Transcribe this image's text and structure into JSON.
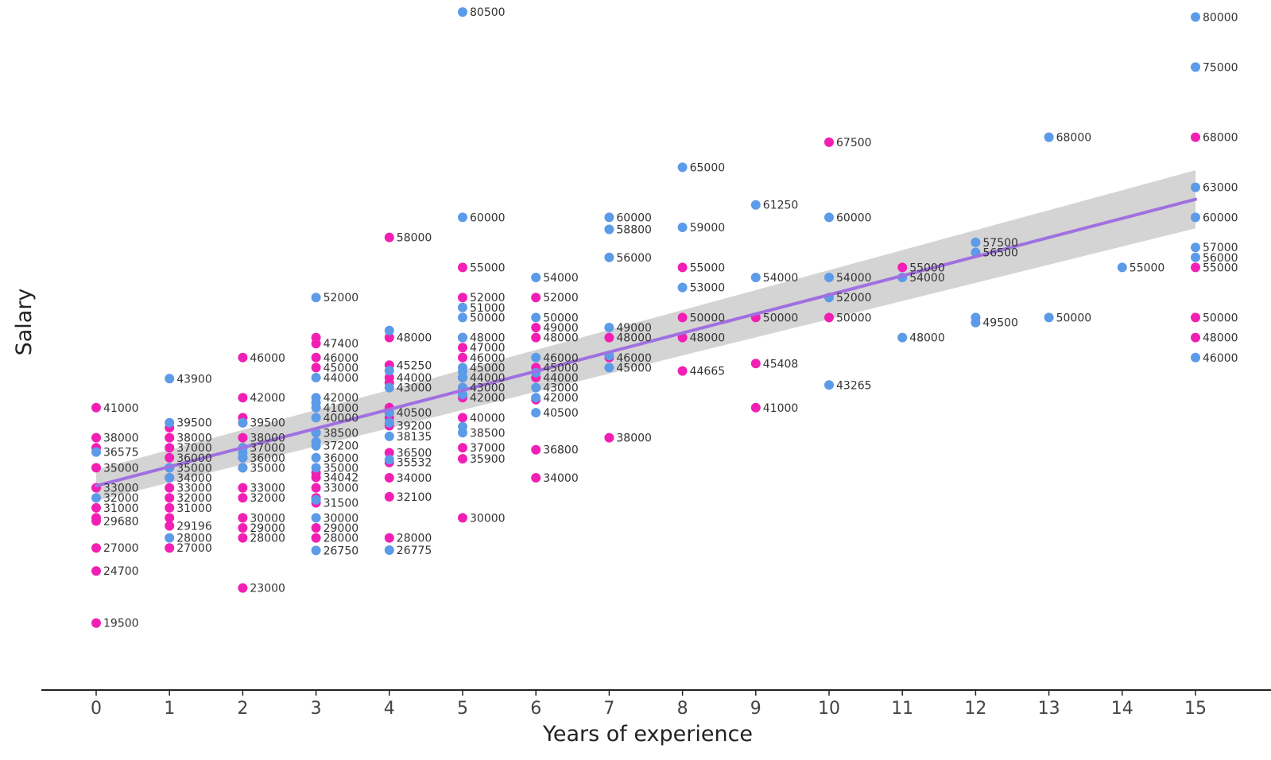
{
  "chart_data": {
    "type": "scatter",
    "title": "",
    "xlabel": "Years of experience",
    "ylabel": "Salary",
    "xlim": [
      0,
      15
    ],
    "ylim": [
      15000,
      81000
    ],
    "x_ticks": [
      "0",
      "1",
      "2",
      "3",
      "4",
      "5",
      "6",
      "7",
      "8",
      "9",
      "10",
      "11",
      "12",
      "13",
      "14",
      "15"
    ],
    "grid": false,
    "colors": {
      "pink": "#f21fb4",
      "blue": "#5b9be8",
      "trend": "#a070e0",
      "band": "#cccccc",
      "axis": "#222222"
    },
    "trend_line": {
      "x": [
        0,
        15
      ],
      "y": [
        33200,
        61800
      ]
    },
    "confidence_band": {
      "x": [
        0,
        15
      ],
      "lower": [
        31700,
        58900
      ],
      "upper": [
        34800,
        64700
      ]
    },
    "series": [
      {
        "color": "pink",
        "points": [
          [
            0,
            41000
          ],
          [
            0,
            38000
          ],
          [
            0,
            35000
          ],
          [
            0,
            33000
          ],
          [
            0,
            31000
          ],
          [
            0,
            29680
          ],
          [
            0,
            27000
          ],
          [
            0,
            24700
          ],
          [
            0,
            19500
          ],
          [
            0,
            37000
          ],
          [
            0,
            30000
          ],
          [
            1,
            37000
          ],
          [
            1,
            36000
          ],
          [
            1,
            34000
          ],
          [
            1,
            33000
          ],
          [
            1,
            32000
          ],
          [
            1,
            31000
          ],
          [
            1,
            29196
          ],
          [
            1,
            27000
          ],
          [
            1,
            39000
          ],
          [
            1,
            38000
          ],
          [
            1,
            35000
          ],
          [
            1,
            30000
          ],
          [
            2,
            46000
          ],
          [
            2,
            42000
          ],
          [
            2,
            39500
          ],
          [
            2,
            38000
          ],
          [
            2,
            37000
          ],
          [
            2,
            33000
          ],
          [
            2,
            32000
          ],
          [
            2,
            30000
          ],
          [
            2,
            29000
          ],
          [
            2,
            28000
          ],
          [
            2,
            23000
          ],
          [
            2,
            40000
          ],
          [
            2,
            36000
          ],
          [
            2,
            35000
          ],
          [
            3,
            47400
          ],
          [
            3,
            46000
          ],
          [
            3,
            45000
          ],
          [
            3,
            34042
          ],
          [
            3,
            33000
          ],
          [
            3,
            31500
          ],
          [
            3,
            29000
          ],
          [
            3,
            28000
          ],
          [
            3,
            48000
          ],
          [
            3,
            38500
          ],
          [
            3,
            34500
          ],
          [
            3,
            32000
          ],
          [
            4,
            58000
          ],
          [
            4,
            48000
          ],
          [
            4,
            45250
          ],
          [
            4,
            44000
          ],
          [
            4,
            41000
          ],
          [
            4,
            40500
          ],
          [
            4,
            39200
          ],
          [
            4,
            36500
          ],
          [
            4,
            35532
          ],
          [
            4,
            34000
          ],
          [
            4,
            32100
          ],
          [
            4,
            28000
          ],
          [
            4,
            40000
          ],
          [
            4,
            43500
          ],
          [
            5,
            55000
          ],
          [
            5,
            52000
          ],
          [
            5,
            47000
          ],
          [
            5,
            46000
          ],
          [
            5,
            43000
          ],
          [
            5,
            42000
          ],
          [
            5,
            40000
          ],
          [
            5,
            37000
          ],
          [
            5,
            35900
          ],
          [
            5,
            30000
          ],
          [
            5,
            48000
          ],
          [
            5,
            44000
          ],
          [
            6,
            52000
          ],
          [
            6,
            49000
          ],
          [
            6,
            48000
          ],
          [
            6,
            45000
          ],
          [
            6,
            44000
          ],
          [
            6,
            36800
          ],
          [
            6,
            34000
          ],
          [
            6,
            41800
          ],
          [
            7,
            48000
          ],
          [
            7,
            46000
          ],
          [
            7,
            38000
          ],
          [
            8,
            55000
          ],
          [
            8,
            50000
          ],
          [
            8,
            48000
          ],
          [
            8,
            44665
          ],
          [
            9,
            50000
          ],
          [
            9,
            45408
          ],
          [
            9,
            41000
          ],
          [
            10,
            67500
          ],
          [
            10,
            50000
          ],
          [
            11,
            55000
          ],
          [
            15,
            68000
          ],
          [
            15,
            55000
          ],
          [
            15,
            50000
          ],
          [
            15,
            48000
          ]
        ]
      },
      {
        "color": "blue",
        "points": [
          [
            0,
            36575
          ],
          [
            0,
            32000
          ],
          [
            1,
            43900
          ],
          [
            1,
            39500
          ],
          [
            1,
            35000
          ],
          [
            1,
            34000
          ],
          [
            1,
            28000
          ],
          [
            2,
            39500
          ],
          [
            2,
            37000
          ],
          [
            2,
            35000
          ],
          [
            2,
            36000
          ],
          [
            2,
            36500
          ],
          [
            3,
            52000
          ],
          [
            3,
            44000
          ],
          [
            3,
            42000
          ],
          [
            3,
            41000
          ],
          [
            3,
            40000
          ],
          [
            3,
            38500
          ],
          [
            3,
            37200
          ],
          [
            3,
            36000
          ],
          [
            3,
            35000
          ],
          [
            3,
            30000
          ],
          [
            3,
            26750
          ],
          [
            3,
            41500
          ],
          [
            3,
            31800
          ],
          [
            3,
            37600
          ],
          [
            4,
            48700
          ],
          [
            4,
            43000
          ],
          [
            4,
            40500
          ],
          [
            4,
            38135
          ],
          [
            4,
            35800
          ],
          [
            4,
            26775
          ],
          [
            4,
            39500
          ],
          [
            4,
            44700
          ],
          [
            5,
            80500
          ],
          [
            5,
            60000
          ],
          [
            5,
            51000
          ],
          [
            5,
            50000
          ],
          [
            5,
            48000
          ],
          [
            5,
            45000
          ],
          [
            5,
            44000
          ],
          [
            5,
            43000
          ],
          [
            5,
            38500
          ],
          [
            5,
            42300
          ],
          [
            5,
            39100
          ],
          [
            5,
            44600
          ],
          [
            6,
            54000
          ],
          [
            6,
            50000
          ],
          [
            6,
            46000
          ],
          [
            6,
            44500
          ],
          [
            6,
            43000
          ],
          [
            6,
            42000
          ],
          [
            6,
            40500
          ],
          [
            7,
            60000
          ],
          [
            7,
            58800
          ],
          [
            7,
            56000
          ],
          [
            7,
            49000
          ],
          [
            7,
            45000
          ],
          [
            7,
            46200
          ],
          [
            8,
            65000
          ],
          [
            8,
            59000
          ],
          [
            8,
            53000
          ],
          [
            9,
            61250
          ],
          [
            9,
            54000
          ],
          [
            10,
            60000
          ],
          [
            10,
            54000
          ],
          [
            10,
            52000
          ],
          [
            10,
            43265
          ],
          [
            11,
            54000
          ],
          [
            11,
            48000
          ],
          [
            12,
            57500
          ],
          [
            12,
            56500
          ],
          [
            12,
            49500
          ],
          [
            12,
            50000
          ],
          [
            13,
            68000
          ],
          [
            13,
            50000
          ],
          [
            14,
            55000
          ],
          [
            15,
            80000
          ],
          [
            15,
            75000
          ],
          [
            15,
            63000
          ],
          [
            15,
            60000
          ],
          [
            15,
            57000
          ],
          [
            15,
            56000
          ],
          [
            15,
            46000
          ]
        ]
      }
    ],
    "labels": [
      [
        "0",
        "41000"
      ],
      [
        "0",
        "38000"
      ],
      [
        "0",
        "36575"
      ],
      [
        "0",
        "35000"
      ],
      [
        "0",
        "33000"
      ],
      [
        "0",
        "32000"
      ],
      [
        "0",
        "31000"
      ],
      [
        "0",
        "29680"
      ],
      [
        "0",
        "27000"
      ],
      [
        "0",
        "24700"
      ],
      [
        "0",
        "19500"
      ],
      [
        "1",
        "43900"
      ],
      [
        "1",
        "39500"
      ],
      [
        "1",
        "38000"
      ],
      [
        "1",
        "37000"
      ],
      [
        "1",
        "36000"
      ],
      [
        "1",
        "35000"
      ],
      [
        "1",
        "34000"
      ],
      [
        "1",
        "33000"
      ],
      [
        "1",
        "32000"
      ],
      [
        "1",
        "31000"
      ],
      [
        "1",
        "29196"
      ],
      [
        "1",
        "28000"
      ],
      [
        "1",
        "27000"
      ],
      [
        "2",
        "46000"
      ],
      [
        "2",
        "42000"
      ],
      [
        "2",
        "39500"
      ],
      [
        "2",
        "38000"
      ],
      [
        "2",
        "37000"
      ],
      [
        "2",
        "36000"
      ],
      [
        "2",
        "35000"
      ],
      [
        "2",
        "33000"
      ],
      [
        "2",
        "32000"
      ],
      [
        "2",
        "30000"
      ],
      [
        "2",
        "29000"
      ],
      [
        "2",
        "28000"
      ],
      [
        "2",
        "23000"
      ],
      [
        "3",
        "52000"
      ],
      [
        "3",
        "47400"
      ],
      [
        "3",
        "46000"
      ],
      [
        "3",
        "45000"
      ],
      [
        "3",
        "44000"
      ],
      [
        "3",
        "42000"
      ],
      [
        "3",
        "41000"
      ],
      [
        "3",
        "40000"
      ],
      [
        "3",
        "38500"
      ],
      [
        "3",
        "37200"
      ],
      [
        "3",
        "36000"
      ],
      [
        "3",
        "35000"
      ],
      [
        "3",
        "34042"
      ],
      [
        "3",
        "33000"
      ],
      [
        "3",
        "31500"
      ],
      [
        "3",
        "30000"
      ],
      [
        "3",
        "29000"
      ],
      [
        "3",
        "28000"
      ],
      [
        "3",
        "26750"
      ],
      [
        "4",
        "58000"
      ],
      [
        "4",
        "48000"
      ],
      [
        "4",
        "45250"
      ],
      [
        "4",
        "44000"
      ],
      [
        "4",
        "43000"
      ],
      [
        "4",
        "40500"
      ],
      [
        "4",
        "39200"
      ],
      [
        "4",
        "38135"
      ],
      [
        "4",
        "36500"
      ],
      [
        "4",
        "35532"
      ],
      [
        "4",
        "34000"
      ],
      [
        "4",
        "32100"
      ],
      [
        "4",
        "28000"
      ],
      [
        "4",
        "26775"
      ],
      [
        "5",
        "80500"
      ],
      [
        "5",
        "60000"
      ],
      [
        "5",
        "55000"
      ],
      [
        "5",
        "52000"
      ],
      [
        "5",
        "51000"
      ],
      [
        "5",
        "50000"
      ],
      [
        "5",
        "48000"
      ],
      [
        "5",
        "47000"
      ],
      [
        "5",
        "46000"
      ],
      [
        "5",
        "45000"
      ],
      [
        "5",
        "44000"
      ],
      [
        "5",
        "43000"
      ],
      [
        "5",
        "42000"
      ],
      [
        "5",
        "40000"
      ],
      [
        "5",
        "38500"
      ],
      [
        "5",
        "37000"
      ],
      [
        "5",
        "35900"
      ],
      [
        "5",
        "30000"
      ],
      [
        "6",
        "54000"
      ],
      [
        "6",
        "52000"
      ],
      [
        "6",
        "50000"
      ],
      [
        "6",
        "49000"
      ],
      [
        "6",
        "48000"
      ],
      [
        "6",
        "46000"
      ],
      [
        "6",
        "45000"
      ],
      [
        "6",
        "44000"
      ],
      [
        "6",
        "43000"
      ],
      [
        "6",
        "42000"
      ],
      [
        "6",
        "40500"
      ],
      [
        "6",
        "36800"
      ],
      [
        "6",
        "34000"
      ],
      [
        "7",
        "60000"
      ],
      [
        "7",
        "58800"
      ],
      [
        "7",
        "56000"
      ],
      [
        "7",
        "49000"
      ],
      [
        "7",
        "48000"
      ],
      [
        "7",
        "46000"
      ],
      [
        "7",
        "45000"
      ],
      [
        "7",
        "38000"
      ],
      [
        "8",
        "65000"
      ],
      [
        "8",
        "59000"
      ],
      [
        "8",
        "55000"
      ],
      [
        "8",
        "53000"
      ],
      [
        "8",
        "50000"
      ],
      [
        "8",
        "48000"
      ],
      [
        "8",
        "44665"
      ],
      [
        "9",
        "61250"
      ],
      [
        "9",
        "54000"
      ],
      [
        "9",
        "50000"
      ],
      [
        "9",
        "45408"
      ],
      [
        "9",
        "41000"
      ],
      [
        "10",
        "67500"
      ],
      [
        "10",
        "60000"
      ],
      [
        "10",
        "54000"
      ],
      [
        "10",
        "52000"
      ],
      [
        "10",
        "50000"
      ],
      [
        "10",
        "43265"
      ],
      [
        "11",
        "55000"
      ],
      [
        "11",
        "54000"
      ],
      [
        "11",
        "48000"
      ],
      [
        "12",
        "57500"
      ],
      [
        "12",
        "56500"
      ],
      [
        "12",
        "49500"
      ],
      [
        "13",
        "68000"
      ],
      [
        "13",
        "50000"
      ],
      [
        "14",
        "55000"
      ],
      [
        "15",
        "80000"
      ],
      [
        "15",
        "75000"
      ],
      [
        "15",
        "68000"
      ],
      [
        "15",
        "63000"
      ],
      [
        "15",
        "60000"
      ],
      [
        "15",
        "57000"
      ],
      [
        "15",
        "56000"
      ],
      [
        "15",
        "55000"
      ],
      [
        "15",
        "50000"
      ],
      [
        "15",
        "48000"
      ],
      [
        "15",
        "46000"
      ]
    ]
  }
}
